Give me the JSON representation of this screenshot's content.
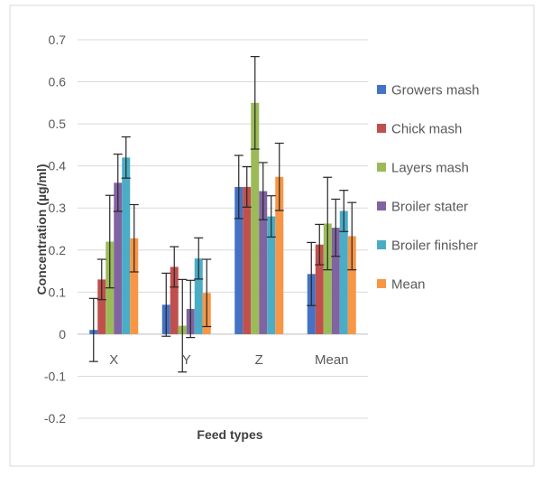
{
  "chart_data": {
    "type": "bar",
    "title": "",
    "xlabel": "Feed types",
    "ylabel": "Concentration (µg/ml)",
    "ylim": [
      -0.2,
      0.7
    ],
    "yticks": [
      -0.2,
      -0.1,
      0,
      0.1,
      0.2,
      0.3,
      0.4,
      0.5,
      0.6,
      0.7
    ],
    "ytick_labels": [
      "-0.2",
      "-0.1",
      "0",
      "0.1",
      "0.2",
      "0.3",
      "0.4",
      "0.5",
      "0.6",
      "0.7"
    ],
    "grid": "horizontal",
    "legend_position": "right",
    "categories": [
      "X",
      "Y",
      "Z",
      "Mean"
    ],
    "series": [
      {
        "name": "Growers mash",
        "color": "#4472C4",
        "values": [
          0.01,
          0.07,
          0.35,
          0.143
        ],
        "errors": [
          0.075,
          0.075,
          0.075,
          0.075
        ]
      },
      {
        "name": "Chick mash",
        "color": "#C0504D",
        "values": [
          0.13,
          0.16,
          0.35,
          0.213
        ],
        "errors": [
          0.048,
          0.048,
          0.048,
          0.048
        ]
      },
      {
        "name": "Layers mash",
        "color": "#9BBB59",
        "values": [
          0.22,
          0.02,
          0.55,
          0.263
        ],
        "errors": [
          0.11,
          0.11,
          0.11,
          0.11
        ]
      },
      {
        "name": "Broiler stater",
        "color": "#8064A2",
        "values": [
          0.36,
          0.06,
          0.34,
          0.253
        ],
        "errors": [
          0.068,
          0.068,
          0.068,
          0.068
        ]
      },
      {
        "name": "Broiler finisher",
        "color": "#4BACC6",
        "values": [
          0.42,
          0.18,
          0.28,
          0.293
        ],
        "errors": [
          0.049,
          0.049,
          0.049,
          0.049
        ]
      },
      {
        "name": "Mean",
        "color": "#F79646",
        "values": [
          0.228,
          0.098,
          0.374,
          0.233
        ],
        "errors": [
          0.08,
          0.08,
          0.08,
          0.08
        ]
      }
    ]
  }
}
